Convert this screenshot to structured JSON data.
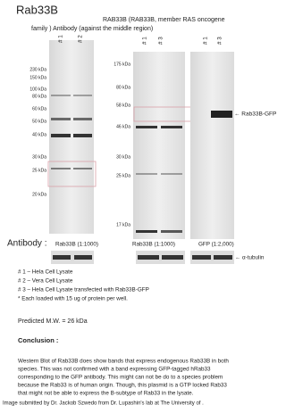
{
  "title": "Rab33B",
  "antibody_header": [
    "RAB33B (RAB33B, member RAS oncogene",
    "family ) Antibody (against the middle region)"
  ],
  "blots": [
    {
      "lanes": [
        "# 1",
        "# 2"
      ],
      "markers": [
        "230 kDa",
        "150 kDa",
        "100 kDa",
        "80 kDa",
        "60 kDa",
        "50 kDa",
        "40 kDa",
        "30 kDa",
        "25 kDa",
        "20 kDa"
      ],
      "antibody": "Rab33B (1:1000)"
    },
    {
      "lanes": [
        "# 1",
        "# 3"
      ],
      "markers": [
        "175 kDa",
        "80 kDa",
        "58 kDa",
        "46 kDa",
        "30 kDa",
        "25 kDa",
        "17 kDa"
      ],
      "antibody": "Rab33B (1:1000)"
    },
    {
      "lanes": [
        "# 1",
        "# 3"
      ],
      "antibody": "GFP (1:2,000)",
      "band_label": "← Rab33B-GFP"
    }
  ],
  "antibody_label": "Antibody :",
  "loading_control": "← α-tubulin",
  "legend": [
    "# 1 – Hela Cell Lysate",
    "# 2 – Vera Cell Lysate",
    "# 3 – Hela Cell Lysate transfected with Rab33B-GFP",
    "* Each loaded with 15 ug of protein per well."
  ],
  "predicted_mw": "Predicted M.W. = 26 kDa",
  "conclusion_heading": "Conclusion :",
  "conclusion": [
    "Western Blot of Rab33B does show bands that express endogenous Rab33B in both",
    "species. This was not confirmed with a band expressing GFP-tagged hRab33",
    "corresponding to the GFP antibody. This might can not be do to a species problem",
    "because the Rab33 is of human origin. Though, this plasmid is a GTP locked Rab33",
    "that might not be able to express the B-subtype of Rab33 in the lysate."
  ],
  "footer": "Image submitted by Dr. Jackob Szwedo from Dr. Lupashin's lab at The University of ."
}
